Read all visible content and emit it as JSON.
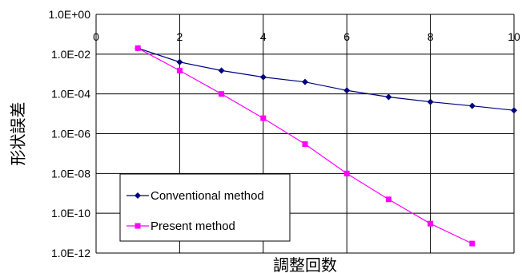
{
  "chart_data": {
    "type": "line",
    "xlabel": "調整回数",
    "ylabel": "形状誤差",
    "xlim": [
      0,
      10
    ],
    "ylim_exponent": [
      -12,
      0
    ],
    "y_scale": "log",
    "x_ticks": [
      "0",
      "2",
      "4",
      "6",
      "8",
      "10"
    ],
    "y_ticks": [
      "1.0E+00",
      "1.0E-02",
      "1.0E-04",
      "1.0E-06",
      "1.0E-08",
      "1.0E-10",
      "1.0E-12"
    ],
    "grid": true,
    "legend_position": "bottom-left",
    "series": [
      {
        "name": "Conventional method",
        "marker": "diamond",
        "color": "#000080",
        "x": [
          1,
          2,
          3,
          4,
          5,
          6,
          7,
          8,
          9,
          10
        ],
        "y": [
          0.02,
          0.004,
          0.0015,
          0.0007,
          0.0004,
          0.00015,
          7e-05,
          4e-05,
          2.5e-05,
          1.5e-05
        ]
      },
      {
        "name": "Present method",
        "marker": "square",
        "color": "#ff00ff",
        "x": [
          1,
          2,
          3,
          4,
          5,
          6,
          7,
          8,
          9
        ],
        "y": [
          0.02,
          0.0015,
          0.0001,
          6e-06,
          3e-07,
          1e-08,
          5e-10,
          3e-11,
          3e-12
        ]
      }
    ]
  }
}
